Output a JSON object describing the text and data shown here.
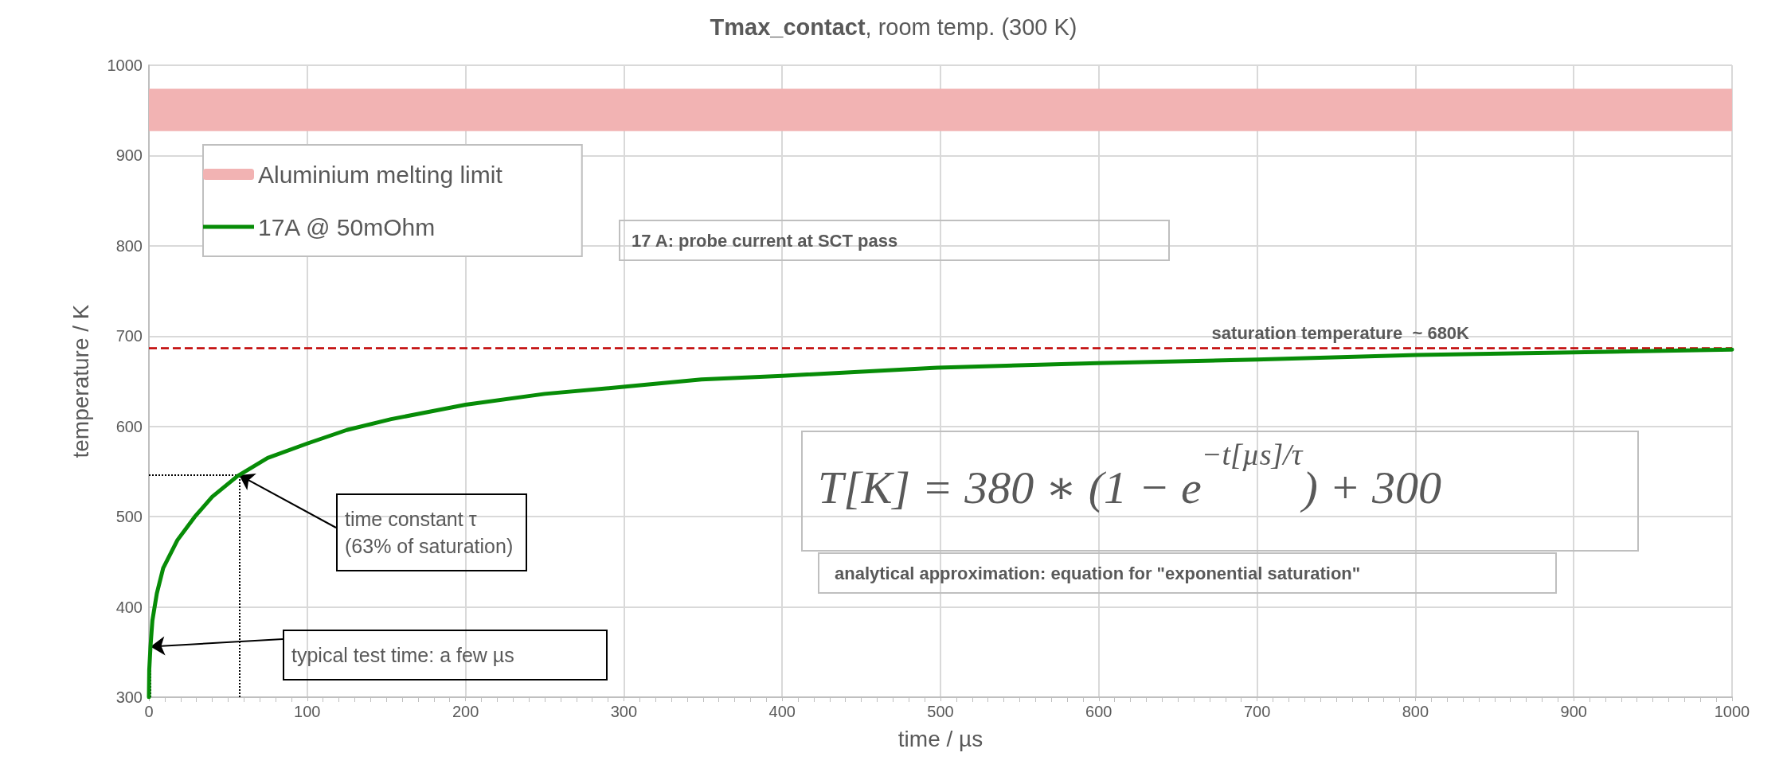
{
  "chart_data": {
    "type": "line",
    "title": "Tmax_contact, room temp. (300 K)",
    "xlabel": "time / µs",
    "ylabel": "temperature / K",
    "x": [
      0,
      0.2,
      1,
      2.2,
      5,
      9,
      18,
      29,
      40,
      56,
      75,
      100,
      125,
      153,
      200,
      250,
      301,
      349,
      400,
      498,
      599,
      700,
      801,
      900,
      1000
    ],
    "series": [
      {
        "name": "17A @ 50mOhm",
        "color": "#078c07",
        "values": [
          300,
          330,
          356,
          385,
          415,
          443,
          474,
          500,
          522,
          545,
          565,
          581,
          596,
          608,
          624,
          636,
          644,
          652,
          656,
          665,
          670,
          674,
          679,
          682,
          685
        ]
      }
    ],
    "bands": [
      {
        "axis": "y",
        "from": 927,
        "to": 974,
        "label": "Aluminium melting limit",
        "color": "#f2b3b3"
      }
    ],
    "ref_lines": [
      {
        "axis": "y",
        "value": 687,
        "label": "saturation temperature  ~ 680K",
        "color": "#c00000",
        "line_style": "dashed"
      }
    ],
    "annotations": [
      "17 A: probe current at SCT pass",
      {
        "text": "time constant τ\n(63% of saturation)",
        "x": 57,
        "y": 546
      },
      {
        "text": "typical test time: a few µs",
        "x": 1,
        "y": 356
      },
      "T[K] = 380 ∗ (1 − e$^{−t[µs]/τ}$) + 300",
      "analytical approximation: equation for \"exponential saturation\""
    ],
    "xlim": [
      0,
      1000
    ],
    "xticks": [
      0,
      100,
      200,
      300,
      400,
      500,
      600,
      700,
      800,
      900,
      1000
    ],
    "ylim": [
      300,
      1000
    ],
    "yticks": [
      300,
      400,
      500,
      600,
      700,
      800,
      900,
      1000
    ],
    "grid": true,
    "legend": "top left",
    "marker": "none",
    "line_style": "solid"
  }
}
